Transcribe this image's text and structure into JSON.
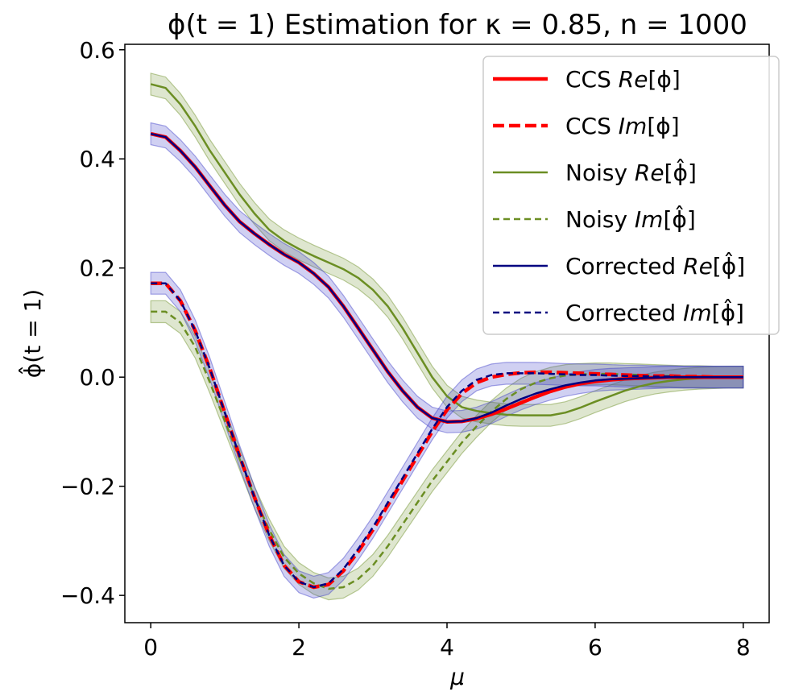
{
  "chart_data": {
    "type": "line",
    "title": "ϕ(t = 1) Estimation for κ = 0.85, n = 1000",
    "xlabel": "μ",
    "ylabel": "ϕ̂(t = 1)",
    "xlim": [
      -0.35,
      8.35
    ],
    "ylim": [
      -0.45,
      0.61
    ],
    "xticks": [
      0,
      2,
      4,
      6,
      8
    ],
    "xtick_labels": [
      "0",
      "2",
      "4",
      "6",
      "8"
    ],
    "yticks": [
      -0.4,
      -0.2,
      0.0,
      0.2,
      0.4,
      0.6
    ],
    "ytick_labels": [
      "−0.4",
      "−0.2",
      "0.0",
      "0.2",
      "0.4",
      "0.6"
    ],
    "grid": false,
    "legend_position": "top-right",
    "x": [
      0,
      0.2,
      0.4,
      0.6,
      0.8,
      1.0,
      1.2,
      1.4,
      1.6,
      1.8,
      2.0,
      2.2,
      2.4,
      2.6,
      2.8,
      3.0,
      3.2,
      3.4,
      3.6,
      3.8,
      4.0,
      4.2,
      4.4,
      4.6,
      4.8,
      5.0,
      5.2,
      5.4,
      5.6,
      5.8,
      6.0,
      6.2,
      6.4,
      6.6,
      6.8,
      7.0,
      7.2,
      7.4,
      7.6,
      7.8,
      8.0
    ],
    "series": [
      {
        "name": "CCS Re[ϕ]",
        "legend_main": "CCS ",
        "legend_italic": "Re",
        "legend_bracket": "[ϕ]",
        "color": "#ff0000",
        "style": "solid",
        "width": 4.5,
        "band": 0,
        "values": [
          0.446,
          0.44,
          0.415,
          0.385,
          0.35,
          0.315,
          0.285,
          0.263,
          0.243,
          0.225,
          0.21,
          0.19,
          0.165,
          0.13,
          0.09,
          0.05,
          0.01,
          -0.025,
          -0.055,
          -0.075,
          -0.082,
          -0.081,
          -0.076,
          -0.068,
          -0.058,
          -0.047,
          -0.036,
          -0.026,
          -0.018,
          -0.012,
          -0.008,
          -0.005,
          -0.003,
          -0.002,
          -0.001,
          0.0,
          0.0,
          0.0,
          0.0,
          0.0,
          0.0
        ]
      },
      {
        "name": "CCS Im[ϕ]",
        "legend_main": "CCS ",
        "legend_italic": "Im",
        "legend_bracket": "[ϕ]",
        "color": "#ff0000",
        "style": "dashed",
        "width": 4.5,
        "band": 0,
        "values": [
          0.172,
          0.172,
          0.14,
          0.085,
          0.015,
          -0.065,
          -0.145,
          -0.22,
          -0.29,
          -0.345,
          -0.375,
          -0.385,
          -0.38,
          -0.355,
          -0.32,
          -0.28,
          -0.235,
          -0.19,
          -0.145,
          -0.1,
          -0.06,
          -0.03,
          -0.01,
          0.0,
          0.005,
          0.008,
          0.009,
          0.009,
          0.008,
          0.007,
          0.006,
          0.005,
          0.004,
          0.003,
          0.002,
          0.002,
          0.001,
          0.001,
          0.0,
          0.0,
          0.0
        ]
      },
      {
        "name": "Noisy Re[ϕ̂]",
        "legend_main": "Noisy ",
        "legend_italic": "Re",
        "legend_bracket": "[ϕ̂]",
        "color": "#6b8e23",
        "style": "solid",
        "width": 2.5,
        "band": 0.02,
        "values": [
          0.537,
          0.53,
          0.5,
          0.46,
          0.415,
          0.375,
          0.335,
          0.3,
          0.27,
          0.25,
          0.235,
          0.222,
          0.21,
          0.198,
          0.182,
          0.16,
          0.13,
          0.09,
          0.045,
          0.0,
          -0.035,
          -0.055,
          -0.062,
          -0.066,
          -0.069,
          -0.07,
          -0.07,
          -0.07,
          -0.065,
          -0.056,
          -0.045,
          -0.035,
          -0.025,
          -0.017,
          -0.011,
          -0.007,
          -0.004,
          -0.002,
          -0.001,
          0.0,
          0.0
        ]
      },
      {
        "name": "Noisy Im[ϕ̂]",
        "legend_main": "Noisy ",
        "legend_italic": "Im",
        "legend_bracket": "[ϕ̂]",
        "color": "#6b8e23",
        "style": "dashed",
        "width": 2.5,
        "band": 0.02,
        "values": [
          0.12,
          0.12,
          0.1,
          0.055,
          -0.01,
          -0.08,
          -0.15,
          -0.22,
          -0.28,
          -0.33,
          -0.36,
          -0.378,
          -0.388,
          -0.385,
          -0.37,
          -0.345,
          -0.31,
          -0.27,
          -0.23,
          -0.19,
          -0.155,
          -0.12,
          -0.09,
          -0.063,
          -0.04,
          -0.022,
          -0.01,
          -0.002,
          0.003,
          0.005,
          0.006,
          0.006,
          0.005,
          0.004,
          0.003,
          0.002,
          0.001,
          0.001,
          0.0,
          0.0,
          0.0
        ]
      },
      {
        "name": "Corrected Re[ϕ̂]",
        "legend_main": "Corrected ",
        "legend_italic": "Re",
        "legend_bracket": "[ϕ̂]",
        "color": "#000080",
        "style": "solid",
        "width": 2.5,
        "band": 0.02,
        "values": [
          0.446,
          0.44,
          0.415,
          0.385,
          0.35,
          0.315,
          0.285,
          0.263,
          0.243,
          0.225,
          0.21,
          0.19,
          0.165,
          0.13,
          0.09,
          0.05,
          0.01,
          -0.025,
          -0.055,
          -0.075,
          -0.082,
          -0.081,
          -0.075,
          -0.065,
          -0.052,
          -0.04,
          -0.03,
          -0.022,
          -0.015,
          -0.01,
          -0.006,
          -0.004,
          -0.003,
          -0.002,
          -0.001,
          0.0,
          0.0,
          0.0,
          0.0,
          0.0,
          0.0
        ]
      },
      {
        "name": "Corrected Im[ϕ̂]",
        "legend_main": "Corrected ",
        "legend_italic": "Im",
        "legend_bracket": "[ϕ̂]",
        "color": "#000080",
        "style": "dashed",
        "width": 2.5,
        "band": 0.02,
        "values": [
          0.172,
          0.172,
          0.14,
          0.085,
          0.015,
          -0.065,
          -0.145,
          -0.22,
          -0.29,
          -0.345,
          -0.375,
          -0.385,
          -0.378,
          -0.352,
          -0.315,
          -0.275,
          -0.23,
          -0.185,
          -0.14,
          -0.095,
          -0.055,
          -0.025,
          -0.005,
          0.004,
          0.007,
          0.007,
          0.007,
          0.006,
          0.005,
          0.004,
          0.004,
          0.003,
          0.002,
          0.002,
          0.001,
          0.001,
          0.0,
          0.0,
          0.0,
          0.0,
          0.0
        ]
      }
    ]
  }
}
